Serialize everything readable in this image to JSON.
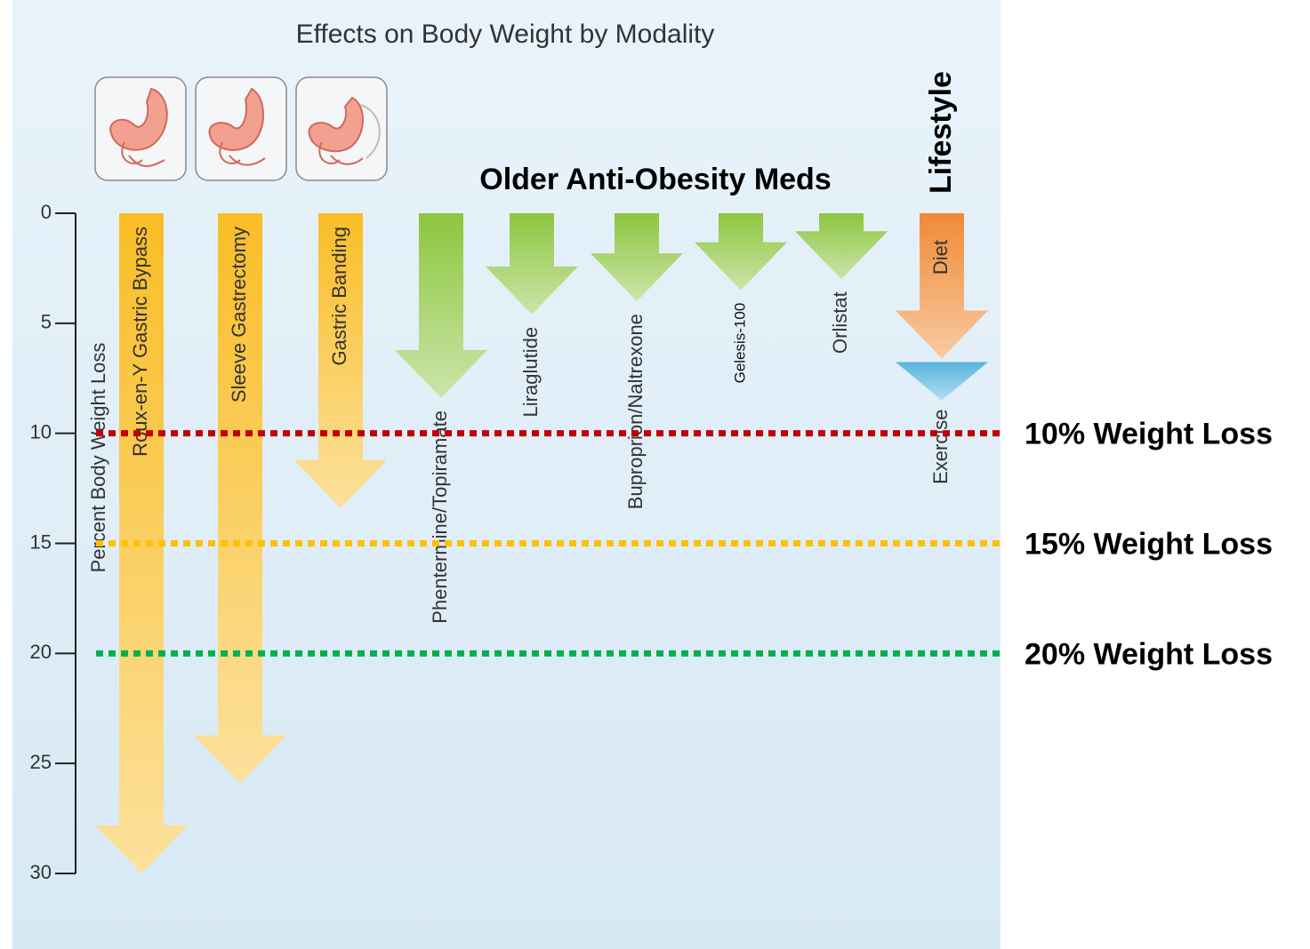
{
  "chart_data": {
    "type": "arrow",
    "title": "Effects on Body Weight by Modality",
    "y_label": "Percent Body Weight Loss",
    "ylim": [
      0,
      30
    ],
    "yticks": [
      0,
      5,
      10,
      15,
      20,
      25,
      30
    ],
    "groups": [
      "Older Anti-Obesity Meds",
      "Lifestyle"
    ],
    "series": [
      {
        "labels": [
          "Roux-en-Y Gastric Bypass",
          "Sleeve Gastrectomy",
          "Gastric Banding",
          "Phentermine/Topiramate",
          "Liraglutide",
          "Buproprion/Naltrexone",
          "Gelesis-100",
          "Orlistat",
          "Diet"
        ],
        "values": [
          30,
          25.9,
          13.4,
          8.4,
          4.6,
          4.0,
          3.5,
          3.0,
          6.6
        ],
        "colors": [
          "#f9bd26",
          "#f9bd26",
          "#f9bd26",
          "#8cc63f",
          "#8cc63f",
          "#8cc63f",
          "#8cc63f",
          "#8cc63f",
          "#f08a35"
        ]
      },
      {
        "labels": [
          null,
          null,
          null,
          null,
          null,
          null,
          null,
          null,
          "Exercise"
        ],
        "values": [
          null,
          null,
          null,
          null,
          null,
          null,
          null,
          null,
          1.9
        ],
        "color": "#58b4dd"
      }
    ],
    "reference_lines": [
      {
        "value": 10,
        "label": "10% Weight Loss",
        "color": "#c00000"
      },
      {
        "value": 15,
        "label": "15% Weight Loss",
        "color": "#ffc000"
      },
      {
        "value": 20,
        "label": "20% Weight Loss",
        "color": "#00b050"
      }
    ]
  }
}
